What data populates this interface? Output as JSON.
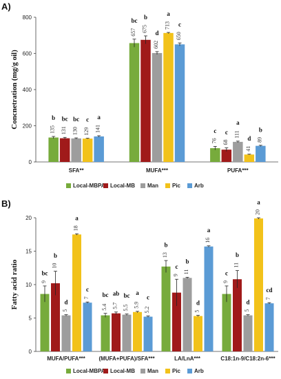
{
  "colors": {
    "Local-MBPA": "#77ab3c",
    "Local-MB": "#a01a1a",
    "Man": "#9d9d9d",
    "Pic": "#f2c21a",
    "Arb": "#5b9bd5"
  },
  "chart_data": [
    {
      "panel": "A)",
      "type": "bar",
      "ylabel": "Concnetration (mg/g oil)",
      "ylim": [
        0,
        800
      ],
      "yticks": [
        0,
        200,
        400,
        600,
        800
      ],
      "categories": [
        "SFA**",
        "MUFA***",
        "PUFA***"
      ],
      "legend": {
        "placement": "bottom",
        "entries": [
          "Local-MBPA",
          "Local-MB",
          "Man",
          "Pic",
          "Arb"
        ]
      },
      "series": [
        {
          "name": "Local-MBPA",
          "values": [
            135,
            657,
            76
          ],
          "errors": [
            6,
            22,
            10
          ],
          "labels": [
            "135",
            "657",
            "76"
          ],
          "letters": [
            "b",
            "bc",
            "c"
          ]
        },
        {
          "name": "Local-MB",
          "values": [
            131,
            675,
            68
          ],
          "errors": [
            5,
            22,
            10
          ],
          "labels": [
            "131",
            "675",
            "68"
          ],
          "letters": [
            "bc",
            "b",
            "c"
          ]
        },
        {
          "name": "Man",
          "values": [
            130,
            602,
            111
          ],
          "errors": [
            3,
            8,
            4
          ],
          "labels": [
            "130",
            "602",
            "111"
          ],
          "letters": [
            "bc",
            "d",
            "a"
          ]
        },
        {
          "name": "Pic",
          "values": [
            129,
            713,
            41
          ],
          "errors": [
            2,
            3,
            2
          ],
          "labels": [
            "129",
            "713",
            "41"
          ],
          "letters": [
            "c",
            "a",
            "d"
          ]
        },
        {
          "name": "Arb",
          "values": [
            141,
            650,
            89
          ],
          "errors": [
            4,
            8,
            3
          ],
          "labels": [
            "141",
            "650",
            "89"
          ],
          "letters": [
            "a",
            "c",
            "b"
          ]
        }
      ]
    },
    {
      "panel": "B)",
      "type": "bar",
      "ylabel": "Fatty acid ratio",
      "ylim": [
        0,
        20
      ],
      "yticks": [
        0,
        5,
        10,
        15,
        20
      ],
      "categories": [
        "MUFA/PUFA***",
        "(MUFA+PUFA)/SFA***",
        "LA/LnA***",
        "C18:1n-9/C18:2n-6***"
      ],
      "legend": {
        "placement": "bottom",
        "entries": [
          "Local-MBPA",
          "Local-MB",
          "Man",
          "Pic",
          "Arb"
        ]
      },
      "series": [
        {
          "name": "Local-MBPA",
          "values": [
            8.6,
            5.4,
            12.7,
            8.6
          ],
          "errors": [
            1.2,
            0.3,
            0.9,
            1.2
          ],
          "labels": [
            "9",
            "5.4",
            "13",
            "9"
          ],
          "letters": [
            "bc",
            "bc",
            "b",
            "c"
          ]
        },
        {
          "name": "Local-MB",
          "values": [
            10.2,
            5.7,
            8.8,
            10.8
          ],
          "errors": [
            1.8,
            0.2,
            2.0,
            1.3
          ],
          "labels": [
            "10",
            "5.7",
            "9",
            "11"
          ],
          "letters": [
            "b",
            "ab",
            "c",
            "b"
          ]
        },
        {
          "name": "Man",
          "values": [
            5.4,
            5.5,
            11.0,
            5.4
          ],
          "errors": [
            0.1,
            0.1,
            0.1,
            0.1
          ],
          "labels": [
            "5",
            "5.5",
            "11",
            "5"
          ],
          "letters": [
            "d",
            "bc",
            "b",
            "d"
          ]
        },
        {
          "name": "Pic",
          "values": [
            17.5,
            5.9,
            5.3,
            19.9
          ],
          "errors": [
            0.1,
            0.1,
            0.1,
            0.1
          ],
          "labels": [
            "18",
            "5.9",
            "5",
            "20"
          ],
          "letters": [
            "a",
            "a",
            "d",
            "a"
          ]
        },
        {
          "name": "Arb",
          "values": [
            7.3,
            5.2,
            15.7,
            7.2
          ],
          "errors": [
            0.1,
            0.1,
            0.1,
            0.1
          ],
          "labels": [
            "7",
            "5.2",
            "16",
            "7"
          ],
          "letters": [
            "c",
            "c",
            "a",
            "cd"
          ]
        }
      ]
    }
  ]
}
